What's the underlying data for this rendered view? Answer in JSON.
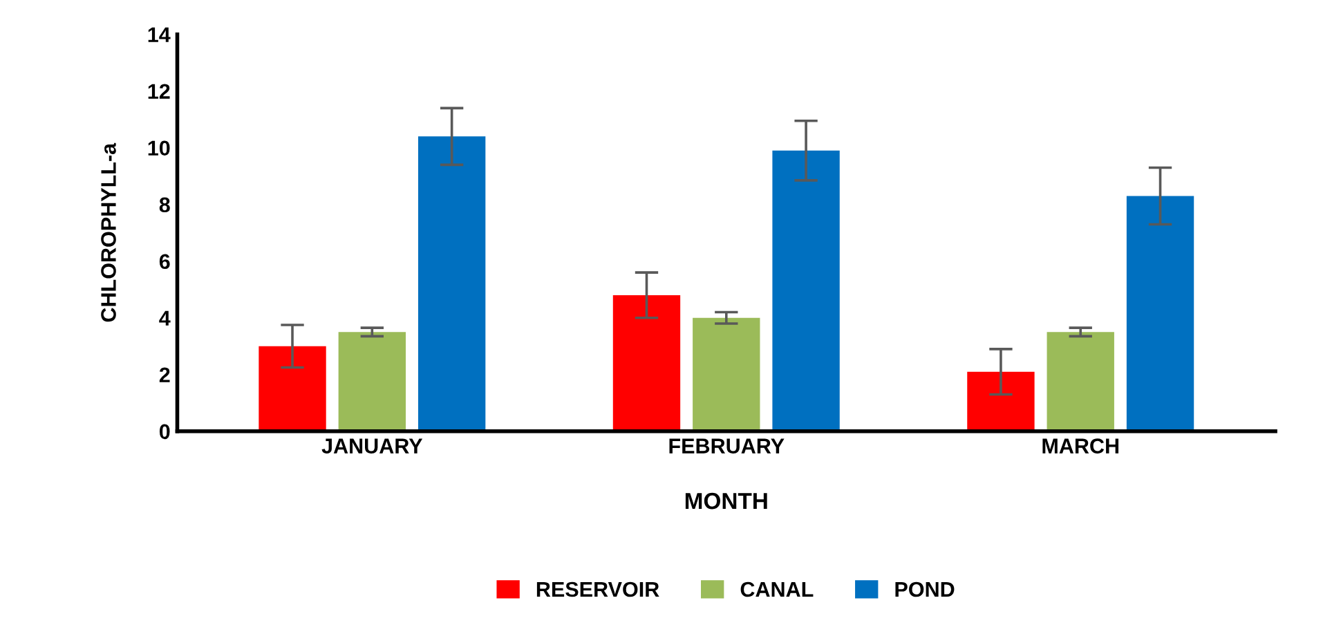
{
  "chart_data": {
    "type": "bar",
    "xlabel": "MONTH",
    "ylabel": "CHLOROPHYLL-a",
    "categories": [
      "JANUARY",
      "FEBRUARY",
      "MARCH"
    ],
    "series": [
      {
        "name": "RESERVOIR",
        "color": "#ff0000",
        "values": [
          3.0,
          4.8,
          2.1
        ],
        "errors": [
          0.75,
          0.8,
          0.8
        ]
      },
      {
        "name": "CANAL",
        "color": "#9bbb59",
        "values": [
          3.5,
          4.0,
          3.5
        ],
        "errors": [
          0.15,
          0.2,
          0.15
        ]
      },
      {
        "name": "POND",
        "color": "#0070c0",
        "values": [
          10.4,
          9.9,
          8.3
        ],
        "errors": [
          1.0,
          1.05,
          1.0
        ]
      }
    ],
    "ylim": [
      0,
      14
    ],
    "yticks": [
      0,
      2,
      4,
      6,
      8,
      10,
      12,
      14
    ],
    "grid": false,
    "legend": "bottom"
  }
}
